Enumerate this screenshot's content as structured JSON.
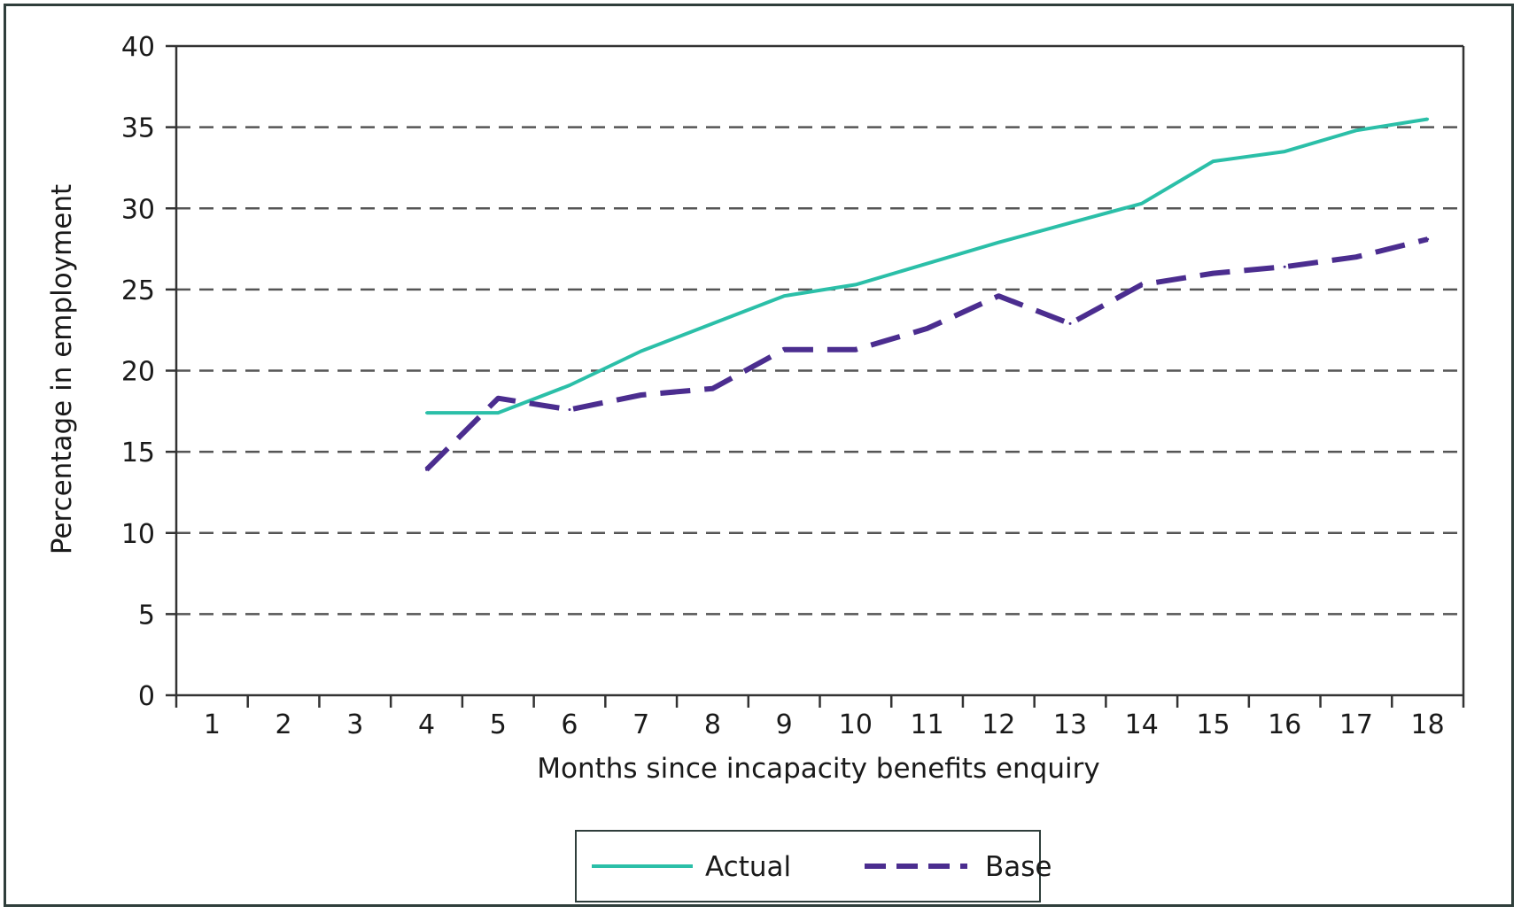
{
  "chart_data": {
    "type": "line",
    "xlabel": "Months since incapacity benefits enquiry",
    "ylabel": "Percentage in employment",
    "x": [
      1,
      2,
      3,
      4,
      5,
      6,
      7,
      8,
      9,
      10,
      11,
      12,
      13,
      14,
      15,
      16,
      17,
      18
    ],
    "ylim": [
      0,
      40
    ],
    "yticks": [
      0,
      5,
      10,
      15,
      20,
      25,
      30,
      35,
      40
    ],
    "grid": "horizontal dashed",
    "legend_position": "bottom",
    "series": [
      {
        "name": "Actual",
        "color": "#2bbfa8",
        "style": "solid",
        "x": [
          4,
          5,
          6,
          7,
          8,
          9,
          10,
          11,
          12,
          13,
          14,
          15,
          16,
          17,
          18
        ],
        "values": [
          17.4,
          17.4,
          19.1,
          21.2,
          22.9,
          24.6,
          25.3,
          26.6,
          27.9,
          29.1,
          30.3,
          32.9,
          33.5,
          34.8,
          35.5
        ]
      },
      {
        "name": "Base",
        "color": "#4b2d8f",
        "style": "dashed",
        "x": [
          4,
          5,
          6,
          7,
          8,
          9,
          10,
          11,
          12,
          13,
          14,
          15,
          16,
          17,
          18
        ],
        "values": [
          13.9,
          18.3,
          17.6,
          18.5,
          18.9,
          21.3,
          21.3,
          22.6,
          24.6,
          22.9,
          25.3,
          26.0,
          26.4,
          27.0,
          28.1
        ]
      }
    ]
  }
}
